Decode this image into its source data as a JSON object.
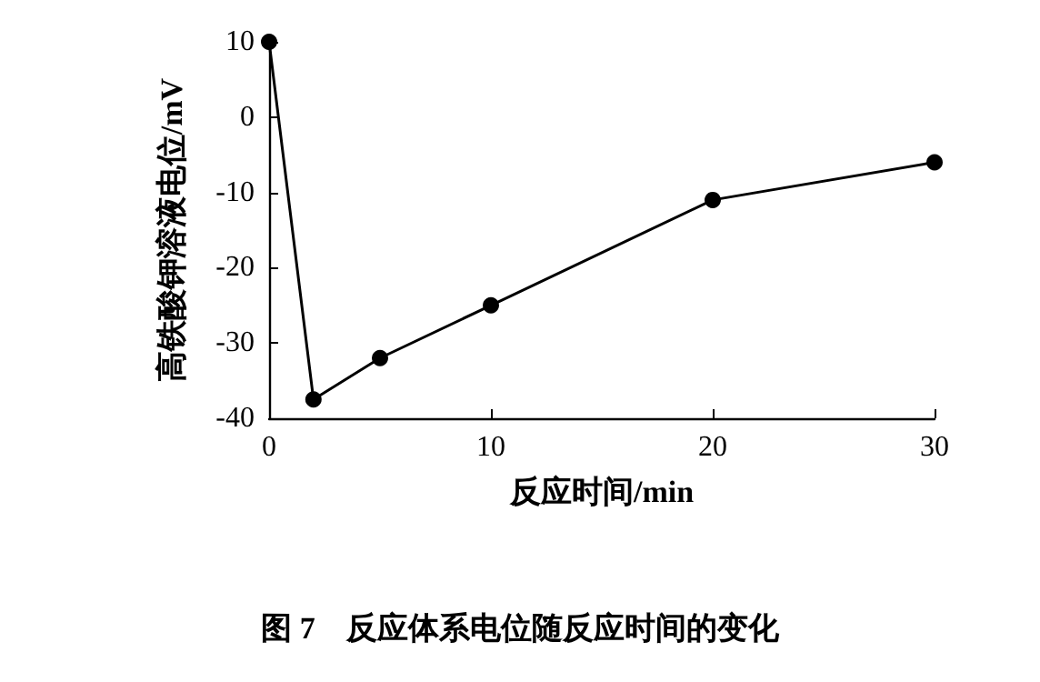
{
  "chart_data": {
    "type": "line",
    "title": "图 7　反应体系电位随反应时间的变化",
    "xlabel": "反应时间/min",
    "ylabel": "高铁酸钾溶液电位/mV",
    "x": [
      0,
      2,
      5,
      10,
      20,
      30
    ],
    "series": [
      {
        "color": "#000000",
        "values": [
          10,
          -37.5,
          -32,
          -25,
          -11,
          -6
        ]
      }
    ],
    "xlim": [
      0,
      30
    ],
    "xticks": [
      0,
      10,
      20,
      30
    ],
    "ylim": [
      -40,
      10
    ],
    "yticks": [
      -40,
      -30,
      -20,
      -10,
      0,
      10
    ],
    "marker": "circle",
    "line_style": "solid"
  }
}
